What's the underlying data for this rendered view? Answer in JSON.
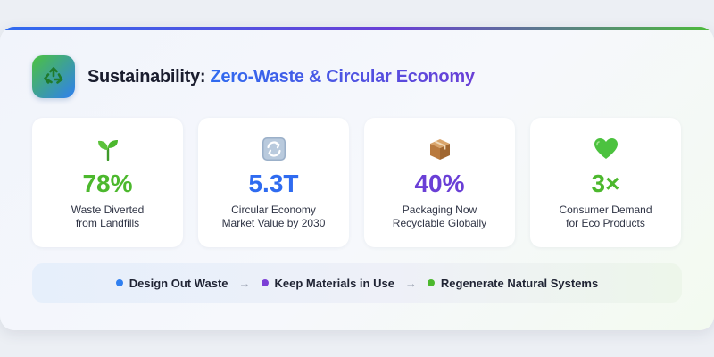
{
  "header": {
    "title_prefix": "Sustainability:",
    "title_highlight": "Zero-Waste & Circular Economy",
    "logo_icon": "recycle-icon"
  },
  "stats": [
    {
      "icon": "seedling-icon",
      "value": "78%",
      "label_line1": "Waste Diverted",
      "label_line2": "from Landfills",
      "color": "#4cb82d"
    },
    {
      "icon": "cycle-arrows-icon",
      "value": "5.3T",
      "label_line1": "Circular Economy",
      "label_line2": "Market Value by 2030",
      "color": "#2f6bf0"
    },
    {
      "icon": "package-icon",
      "value": "40%",
      "label_line1": "Packaging Now",
      "label_line2": "Recyclable Globally",
      "color": "#6a3fd6"
    },
    {
      "icon": "green-heart-icon",
      "value": "3×",
      "label_line1": "Consumer Demand",
      "label_line2": "for Eco Products",
      "color": "#4cb82d"
    }
  ],
  "flow": {
    "steps": [
      {
        "label": "Design Out Waste",
        "color": "#2f7ff0"
      },
      {
        "label": "Keep Materials in Use",
        "color": "#7b3fd6"
      },
      {
        "label": "Regenerate Natural Systems",
        "color": "#4cb82d"
      }
    ],
    "arrow": "→"
  },
  "colors": {
    "accent_blue": "#2f6bf0",
    "accent_purple": "#6a3fd6",
    "accent_green": "#4cb82d"
  }
}
